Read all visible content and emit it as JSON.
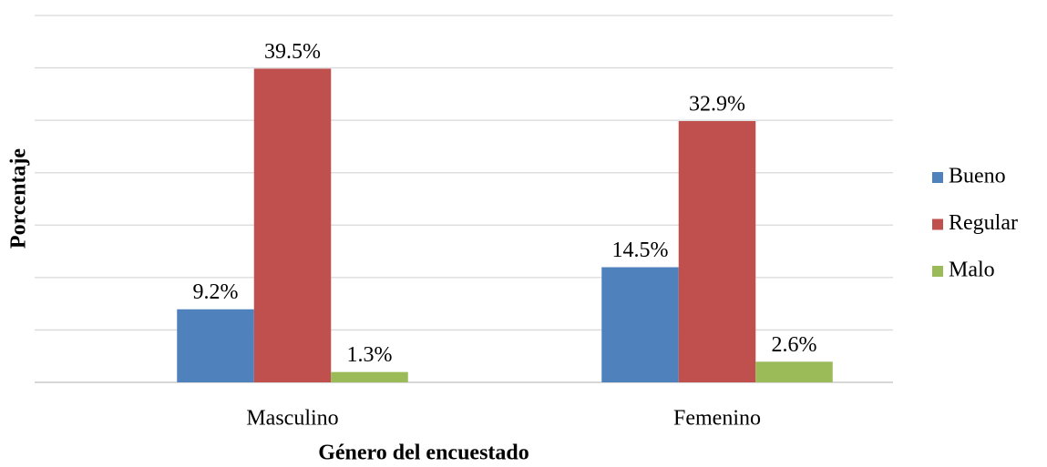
{
  "chart_data": {
    "type": "bar",
    "x_label": "Género del encuestado",
    "y_label": "Porcentaje",
    "categories": [
      "Masculino",
      "Femenino"
    ],
    "series": [
      {
        "name": "Bueno",
        "color": "#4f81bd",
        "values": [
          9.2,
          14.5
        ],
        "value_labels": [
          "9.2%",
          "14.5%"
        ]
      },
      {
        "name": "Regular",
        "color": "#c0504d",
        "values": [
          39.5,
          32.9
        ],
        "value_labels": [
          "39.5%",
          "32.9%"
        ]
      },
      {
        "name": "Malo",
        "color": "#9bbb59",
        "values": [
          1.3,
          2.6
        ],
        "value_labels": [
          "1.3%",
          "2.6%"
        ]
      }
    ],
    "ylim": [
      0,
      46.2
    ],
    "yticks": [
      0,
      6.6,
      13.2,
      19.8,
      26.4,
      33,
      39.6,
      46.2
    ],
    "grid": true,
    "legend": "right"
  }
}
